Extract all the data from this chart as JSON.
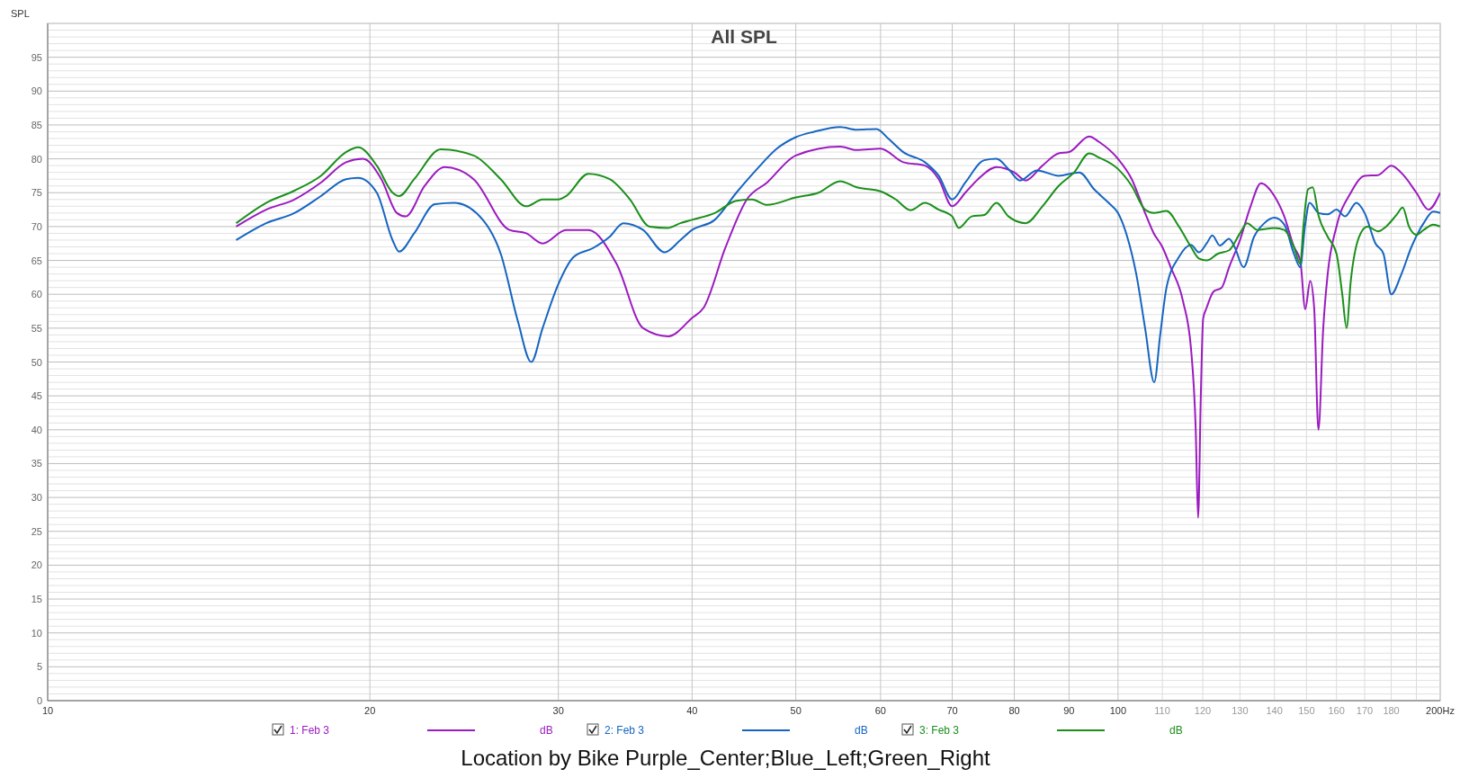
{
  "chart_data": {
    "type": "line",
    "title": "All SPL",
    "subtitle": "Location by Bike Purple_Center;Blue_Left;Green_Right",
    "ylabel": "SPL",
    "annotations": [
      "dB",
      "dB",
      "dB"
    ],
    "log": "x",
    "grid": true,
    "legend": "bottom",
    "xlim": [
      10,
      200
    ],
    "xticks": [
      10,
      20,
      30,
      40,
      50,
      60,
      70,
      80,
      90,
      100,
      110,
      120,
      130,
      140,
      150,
      160,
      170,
      180,
      {
        "value": 190,
        "label": null
      },
      {
        "value": 200,
        "label": "200Hz"
      }
    ],
    "ylim": [
      0,
      100
    ],
    "yticks": [
      0,
      5,
      10,
      15,
      20,
      25,
      30,
      35,
      40,
      45,
      50,
      55,
      60,
      65,
      70,
      75,
      80,
      85,
      90,
      95
    ],
    "series": [
      {
        "name": "1: Feb 3",
        "color": "#9b1bbf",
        "x": [
          15,
          16,
          17,
          18,
          19,
          19.7,
          20.5,
          21.2,
          21.6,
          22.5,
          23.5,
          25,
          27,
          28,
          29,
          30.5,
          32,
          34,
          36,
          38,
          40,
          41,
          43,
          45,
          47,
          50,
          55,
          57,
          60,
          63,
          66,
          68,
          70,
          72,
          74,
          77,
          80,
          82,
          85,
          88,
          90,
          94,
          96,
          100,
          103,
          106,
          108,
          110,
          112,
          115,
          117,
          118.2,
          118.8,
          119.5,
          120.1,
          121,
          122.8,
          125,
          127,
          130,
          133,
          136,
          140,
          143,
          146,
          148,
          149.6,
          151.2,
          152.5,
          153.9,
          155.5,
          157,
          160,
          165,
          170,
          175,
          180,
          185,
          190,
          195,
          200
        ],
        "values": [
          70,
          72.5,
          74,
          76.5,
          79.5,
          80,
          77,
          72,
          71.5,
          76,
          78.8,
          77,
          69.5,
          69,
          67.5,
          69.5,
          69.5,
          64.5,
          55,
          53.8,
          56.5,
          58,
          67,
          74,
          76.5,
          80.5,
          81.8,
          81.3,
          81.5,
          79.5,
          79,
          77,
          73,
          75,
          77,
          78.8,
          78,
          76.8,
          79,
          80.8,
          81,
          83.3,
          82.5,
          80,
          77,
          72,
          69,
          67,
          64,
          59,
          52,
          40,
          27,
          45,
          56.4,
          58,
          60.4,
          61,
          64,
          68,
          73,
          76.4,
          74.5,
          71.5,
          67,
          65,
          57.8,
          62,
          58,
          40,
          55,
          63,
          70,
          75,
          77.5,
          77.6,
          79,
          77.5,
          75,
          72.5,
          75
        ]
      },
      {
        "name": "2: Feb 3",
        "color": "#1565c0",
        "x": [
          15,
          16,
          17,
          18,
          19,
          19.5,
          20.3,
          21,
          21.3,
          22,
          23,
          24,
          25.5,
          26.5,
          27.5,
          28.3,
          29,
          30,
          31,
          32.3,
          33.5,
          34.5,
          36,
          37.7,
          39,
          40,
          42,
          44,
          46,
          48,
          50,
          52,
          55,
          57,
          59.5,
          61,
          63,
          66,
          68,
          70,
          72,
          75,
          77,
          79,
          81,
          84,
          88,
          92,
          95,
          98,
          100,
          102,
          104,
          106,
          108.1,
          109.5,
          111,
          114,
          117,
          119,
          121,
          122.5,
          124.5,
          127,
          128.5,
          131,
          134,
          137,
          140,
          143,
          146,
          148,
          149.5,
          151,
          154,
          157,
          160,
          163,
          167,
          170,
          174,
          177,
          180,
          184,
          188,
          193,
          197,
          200
        ],
        "values": [
          68,
          70.5,
          72,
          74.5,
          77,
          77.2,
          75,
          68,
          66.3,
          69,
          73.3,
          73.5,
          71,
          66,
          56,
          50,
          55,
          61.5,
          65.5,
          66.8,
          68.5,
          70.5,
          69.5,
          66.2,
          68,
          69.5,
          71,
          75,
          78.5,
          81.5,
          83.2,
          84,
          84.7,
          84.3,
          84.4,
          83,
          81,
          79.5,
          77.5,
          74,
          76.5,
          79.8,
          80,
          78.5,
          76.8,
          78.3,
          77.5,
          78,
          75.5,
          73.5,
          72,
          68.5,
          63,
          55,
          47,
          54,
          61,
          65.5,
          67.3,
          66.2,
          67.5,
          68.7,
          67.2,
          68.2,
          67,
          64,
          68.5,
          70.5,
          71.3,
          70.3,
          66,
          64,
          70,
          73.5,
          72,
          71.8,
          72.5,
          71.5,
          73.5,
          72,
          67.5,
          66,
          60,
          63,
          67,
          70.5,
          72.2,
          72
        ]
      },
      {
        "name": "3: Feb 3",
        "color": "#1a8f1a",
        "x": [
          15,
          16,
          17,
          18,
          19,
          19.5,
          20.3,
          21,
          21.3,
          22,
          23.3,
          25,
          26.5,
          28,
          29,
          30,
          30.5,
          32,
          33.5,
          35,
          36.5,
          38,
          39,
          40,
          42,
          44,
          45.5,
          47,
          50,
          52.5,
          55,
          57,
          60,
          62,
          64,
          66,
          68,
          70,
          71,
          73,
          75,
          77,
          79,
          82,
          85,
          88,
          91,
          94,
          96,
          100,
          103,
          106,
          108,
          111,
          114,
          117,
          119,
          121,
          124,
          127,
          130,
          132,
          135,
          140,
          143,
          146,
          148,
          149,
          150.5,
          152,
          154,
          157,
          160,
          162,
          163.5,
          165,
          168,
          171,
          175,
          178,
          182,
          184.5,
          187,
          190,
          193,
          197,
          200
        ],
        "values": [
          70.5,
          73.5,
          75.3,
          77.5,
          81,
          81.7,
          79,
          75,
          74.5,
          77,
          81.4,
          80.5,
          77,
          73,
          74,
          74,
          74.5,
          77.8,
          77,
          74,
          70,
          69.8,
          70.5,
          71,
          72,
          73.8,
          74,
          73.2,
          74.3,
          75,
          76.7,
          75.8,
          75.2,
          74,
          72.4,
          73.5,
          72.5,
          71.5,
          69.8,
          71.5,
          71.7,
          73.5,
          71.5,
          70.5,
          73,
          76,
          78,
          80.8,
          80.2,
          78.5,
          76,
          72.5,
          72,
          72.3,
          70,
          67,
          65.3,
          65,
          66,
          66.5,
          69,
          70.5,
          69.5,
          69.8,
          69.5,
          67,
          64.5,
          70,
          75.5,
          75.8,
          71.5,
          68.5,
          66,
          60,
          55,
          62,
          68.5,
          70,
          69.3,
          70,
          71.7,
          72.8,
          70,
          68.8,
          69.5,
          70.3,
          70
        ]
      }
    ]
  }
}
